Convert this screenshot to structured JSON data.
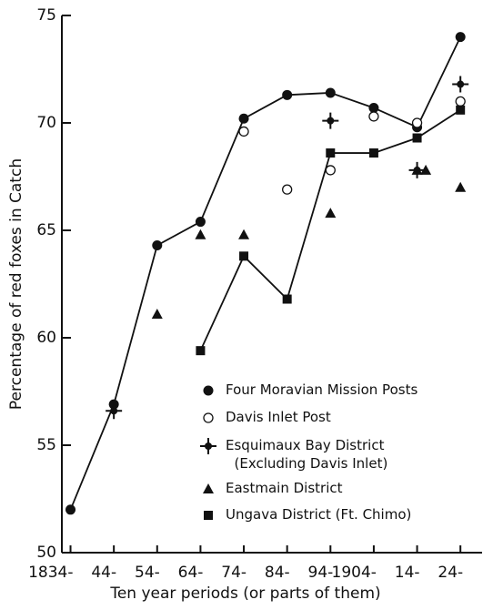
{
  "chart_data": {
    "type": "scatter",
    "xlabel": "Ten year periods (or parts of them)",
    "ylabel": "Percentage of red foxes in Catch",
    "xlim": [
      1832,
      1929
    ],
    "ylim": [
      50,
      75
    ],
    "xticks": [
      {
        "value": 1834,
        "label": "1834-"
      },
      {
        "value": 1844,
        "label": "44-"
      },
      {
        "value": 1854,
        "label": "54-"
      },
      {
        "value": 1864,
        "label": "64-"
      },
      {
        "value": 1874,
        "label": "74-"
      },
      {
        "value": 1884,
        "label": "84-"
      },
      {
        "value": 1894,
        "label": "94-"
      },
      {
        "value": 1904,
        "label": "1904-"
      },
      {
        "value": 1914,
        "label": "14-"
      },
      {
        "value": 1924,
        "label": "24-"
      }
    ],
    "yticks": [
      50,
      55,
      60,
      65,
      70,
      75
    ],
    "series": [
      {
        "name": "Four Moravian Mission Posts",
        "marker": "filled-circle",
        "line": true,
        "color": "#111",
        "x": [
          1834,
          1844,
          1854,
          1864,
          1874,
          1884,
          1894,
          1904,
          1914,
          1924
        ],
        "values": [
          52.0,
          56.9,
          64.3,
          65.4,
          70.2,
          71.3,
          71.4,
          70.7,
          69.8,
          74.0
        ]
      },
      {
        "name": "Davis Inlet Post",
        "marker": "open-circle",
        "line": false,
        "color": "#111",
        "x": [
          1874,
          1884,
          1894,
          1904,
          1914,
          1924
        ],
        "values": [
          69.6,
          66.9,
          67.8,
          70.3,
          70.0,
          71.0
        ]
      },
      {
        "name": "Esquimaux Bay District\n  (Excluding Davis Inlet)",
        "marker": "cross",
        "line": false,
        "color": "#111",
        "x": [
          1844,
          1894,
          1914,
          1924
        ],
        "values": [
          56.6,
          70.1,
          67.8,
          71.8
        ]
      },
      {
        "name": "Eastmain District",
        "marker": "triangle",
        "line": false,
        "color": "#111",
        "x": [
          1854,
          1864,
          1874,
          1894,
          1914,
          1916,
          1924
        ],
        "values": [
          61.1,
          64.8,
          64.8,
          65.8,
          67.8,
          67.8,
          67.0
        ]
      },
      {
        "name": "Ungava District (Ft. Chimo)",
        "marker": "square",
        "line": true,
        "color": "#111",
        "x": [
          1864,
          1874,
          1884,
          1894,
          1904,
          1914,
          1924
        ],
        "values": [
          59.4,
          63.8,
          61.8,
          68.6,
          68.6,
          69.3,
          70.6
        ]
      }
    ]
  }
}
